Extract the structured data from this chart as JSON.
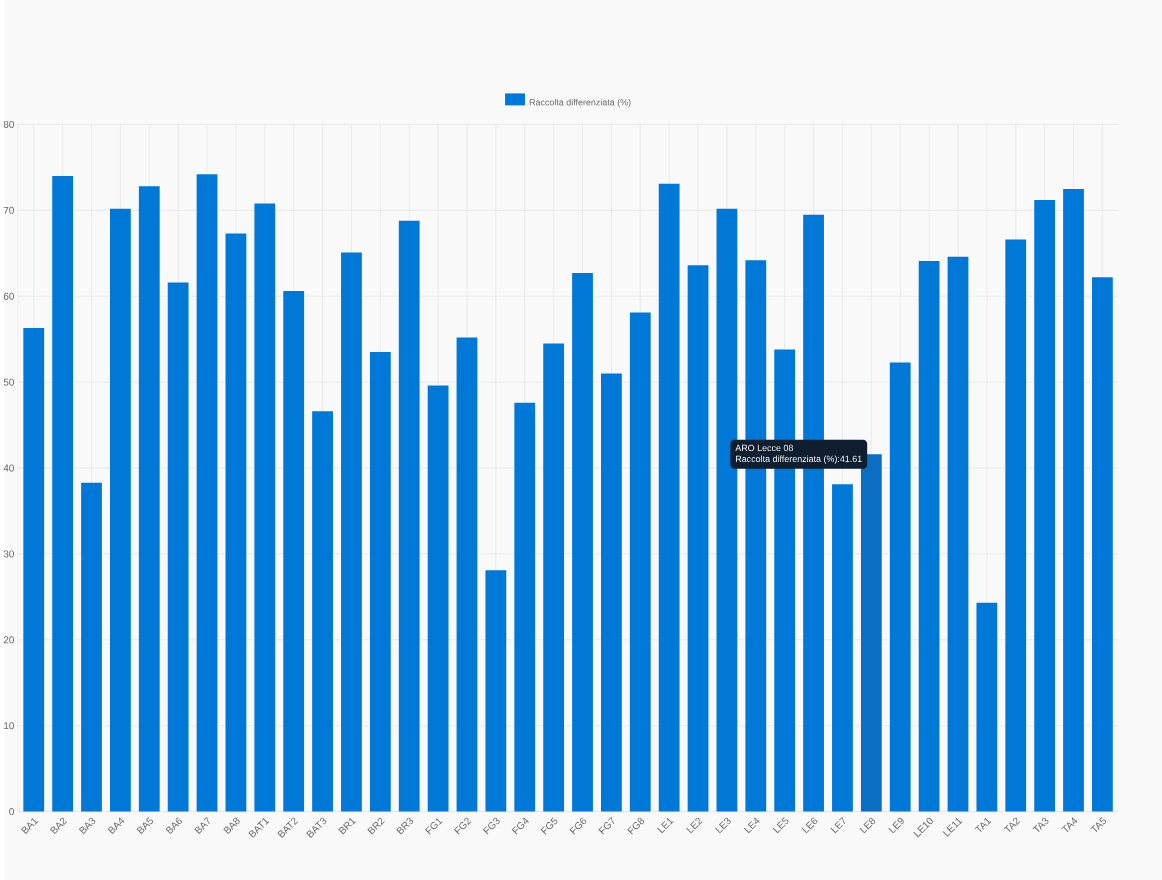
{
  "chart_data": {
    "type": "bar",
    "categories": [
      "BA1",
      "BA2",
      "BA3",
      "BA4",
      "BA5",
      "BA6",
      "BA7",
      "BA8",
      "BAT1",
      "BAT2",
      "BAT3",
      "BR1",
      "BR2",
      "BR3",
      "FG1",
      "FG2",
      "FG3",
      "FG4",
      "FG5",
      "FG6",
      "FG7",
      "FG8",
      "LE1",
      "LE2",
      "LE3",
      "LE4",
      "LE5",
      "LE6",
      "LE7",
      "LE8",
      "LE9",
      "LE10",
      "LE11",
      "TA1",
      "TA2",
      "TA3",
      "TA4",
      "TA5"
    ],
    "series": [
      {
        "name": "Raccolta differenziata (%)",
        "color": "#0078d7",
        "values": [
          56.3,
          74.0,
          38.3,
          70.2,
          72.8,
          61.6,
          74.2,
          67.3,
          70.8,
          60.6,
          46.6,
          65.1,
          53.5,
          68.8,
          49.6,
          55.2,
          28.1,
          47.6,
          54.5,
          62.7,
          51.0,
          58.1,
          73.1,
          63.6,
          70.2,
          64.2,
          53.8,
          69.5,
          38.1,
          41.61,
          52.3,
          64.1,
          64.6,
          24.3,
          66.6,
          71.2,
          72.5,
          62.2
        ],
        "colors": [
          "#0078d7",
          "#0078d7",
          "#0078d7",
          "#0078d7",
          "#0078d7",
          "#0078d7",
          "#0078d7",
          "#0078d7",
          "#0078d7",
          "#0078d7",
          "#0078d7",
          "#0078d7",
          "#0078d7",
          "#0078d7",
          "#0078d7",
          "#0078d7",
          "#0078d7",
          "#0078d7",
          "#0078d7",
          "#0078d7",
          "#0078d7",
          "#0078d7",
          "#0078d7",
          "#0078d7",
          "#0078d7",
          "#0078d7",
          "#0078d7",
          "#0078d7",
          "#0078d7",
          "#0a6fc2",
          "#0078d7",
          "#0078d7",
          "#0078d7",
          "#0078d7",
          "#0078d7",
          "#0078d7",
          "#0078d7",
          "#0078d7"
        ]
      }
    ],
    "ylim": [
      0,
      80
    ],
    "yticks": [
      0,
      10,
      20,
      30,
      40,
      50,
      60,
      70,
      80
    ],
    "grid": true,
    "legend": "top",
    "annotations": [
      "ARO Lecce 08",
      "Raccolta differenziata (%):41.61"
    ]
  }
}
